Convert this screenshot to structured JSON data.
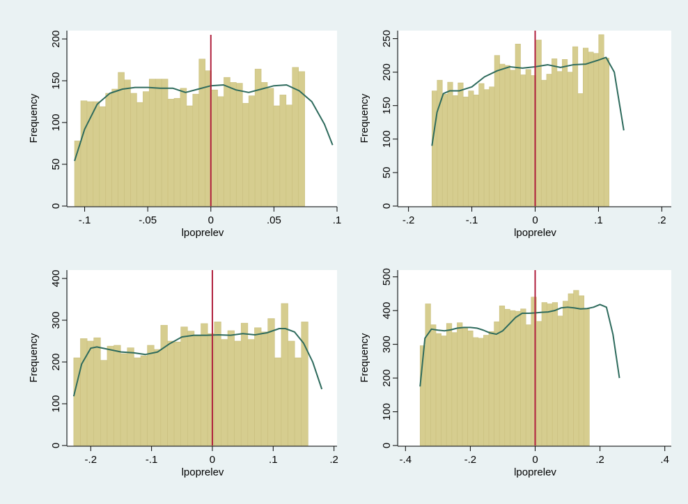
{
  "colors": {
    "background": "#eaf2f3",
    "plot_background": "#ffffff",
    "bar_fill": "#d6cd8f",
    "bar_edge": "#c9bf7e",
    "density_line": "#2d6a5c",
    "cutoff_line": "#b0203d"
  },
  "chart_data": [
    {
      "type": "bar",
      "panel": "top-left",
      "xlabel": "lpoprelev",
      "ylabel": "Frequency",
      "xlim": [
        -0.113,
        0.1
      ],
      "ylim": [
        0,
        210
      ],
      "xticks": [
        -0.1,
        -0.05,
        0,
        0.05,
        0.1
      ],
      "xtick_labels": [
        "-.1",
        "-.05",
        "0",
        ".05",
        ".1"
      ],
      "yticks": [
        0,
        50,
        100,
        150,
        200
      ],
      "ytick_labels": [
        "0",
        "50",
        "100",
        "150",
        "200"
      ],
      "bin_start": -0.108,
      "bin_width": 0.00493,
      "values": [
        78,
        126,
        125,
        125,
        119,
        135,
        140,
        160,
        151,
        135,
        124,
        137,
        152,
        152,
        152,
        128,
        129,
        141,
        120,
        134,
        176,
        162,
        139,
        131,
        154,
        148,
        147,
        123,
        132,
        164,
        148,
        141,
        120,
        133,
        121,
        166,
        161
      ],
      "density_x": [
        -0.108,
        -0.1,
        -0.09,
        -0.08,
        -0.07,
        -0.06,
        -0.05,
        -0.04,
        -0.03,
        -0.02,
        -0.01,
        0,
        0.01,
        0.02,
        0.03,
        0.04,
        0.05,
        0.06,
        0.07,
        0.08,
        0.09,
        0.0965
      ],
      "density_y": [
        54,
        92,
        122,
        135,
        140,
        142,
        142,
        141,
        141,
        136,
        140,
        144,
        145,
        139,
        136,
        140,
        144,
        145,
        138,
        125,
        98,
        73
      ],
      "cutoff_x": 0,
      "cutoff_top": 205
    },
    {
      "type": "bar",
      "panel": "top-right",
      "xlabel": "lpoprelev",
      "ylabel": "Frequency",
      "xlim": [
        -0.215,
        0.215
      ],
      "ylim": [
        0,
        262
      ],
      "xticks": [
        -0.2,
        -0.1,
        0,
        0.1,
        0.2
      ],
      "xtick_labels": [
        "-.2",
        "-.1",
        "0",
        ".1",
        ".2"
      ],
      "yticks": [
        0,
        50,
        100,
        150,
        200,
        250
      ],
      "ytick_labels": [
        "0",
        "50",
        "100",
        "150",
        "200",
        "250"
      ],
      "bin_start": -0.163,
      "bin_width": 0.00823,
      "values": [
        172,
        188,
        167,
        185,
        165,
        184,
        163,
        172,
        166,
        183,
        174,
        178,
        225,
        212,
        210,
        203,
        242,
        196,
        204,
        195,
        248,
        188,
        197,
        220,
        201,
        219,
        200,
        238,
        168,
        236,
        230,
        228,
        256,
        221
      ],
      "density_x": [
        -0.163,
        -0.155,
        -0.145,
        -0.135,
        -0.12,
        -0.1,
        -0.08,
        -0.06,
        -0.04,
        -0.02,
        0,
        0.02,
        0.04,
        0.06,
        0.08,
        0.1,
        0.112,
        0.125,
        0.14
      ],
      "density_y": [
        90,
        140,
        168,
        172,
        172,
        178,
        193,
        202,
        208,
        206,
        208,
        211,
        207,
        211,
        212,
        218,
        222,
        200,
        113
      ],
      "cutoff_x": 0,
      "cutoff_top": 262
    },
    {
      "type": "bar",
      "panel": "bottom-left",
      "xlabel": "lpoprelev",
      "ylabel": "Frequency",
      "xlim": [
        -0.237,
        0.205
      ],
      "ylim": [
        0,
        420
      ],
      "xticks": [
        -0.2,
        -0.1,
        0,
        0.1,
        0.2
      ],
      "xtick_labels": [
        "-.2",
        "-.1",
        "0",
        ".1",
        ".2"
      ],
      "yticks": [
        0,
        100,
        200,
        300,
        400
      ],
      "ytick_labels": [
        "0",
        "100",
        "200",
        "300",
        "400"
      ],
      "bin_start": -0.228,
      "bin_width": 0.01101,
      "values": [
        210,
        256,
        250,
        258,
        204,
        238,
        240,
        220,
        234,
        210,
        215,
        240,
        230,
        288,
        250,
        248,
        284,
        274,
        262,
        292,
        268,
        296,
        254,
        275,
        250,
        293,
        254,
        282,
        272,
        304,
        210,
        340,
        250,
        210,
        296
      ],
      "density_x": [
        -0.228,
        -0.215,
        -0.2,
        -0.19,
        -0.17,
        -0.15,
        -0.13,
        -0.11,
        -0.09,
        -0.07,
        -0.05,
        -0.03,
        -0.01,
        0.01,
        0.03,
        0.05,
        0.07,
        0.09,
        0.11,
        0.12,
        0.135,
        0.15,
        0.165,
        0.18
      ],
      "density_y": [
        118,
        195,
        233,
        236,
        230,
        224,
        222,
        218,
        224,
        244,
        260,
        264,
        264,
        265,
        264,
        268,
        265,
        270,
        280,
        280,
        272,
        245,
        200,
        135
      ],
      "cutoff_x": 0,
      "cutoff_top": 420
    },
    {
      "type": "bar",
      "panel": "bottom-right",
      "xlabel": "lpoprelev",
      "ylabel": "Frequency",
      "xlim": [
        -0.42,
        0.42
      ],
      "ylim": [
        0,
        520
      ],
      "xticks": [
        -0.4,
        -0.2,
        0,
        0.2,
        0.4
      ],
      "xtick_labels": [
        "-.4",
        "-.2",
        "0",
        ".2",
        ".4"
      ],
      "yticks": [
        0,
        100,
        200,
        300,
        400,
        500
      ],
      "ytick_labels": [
        "0",
        "100",
        "200",
        "300",
        "400",
        "500"
      ],
      "bin_start": -0.355,
      "bin_width": 0.01632,
      "values": [
        296,
        420,
        358,
        332,
        325,
        362,
        335,
        364,
        348,
        340,
        320,
        318,
        327,
        338,
        367,
        414,
        404,
        400,
        398,
        405,
        358,
        440,
        368,
        424,
        420,
        424,
        384,
        428,
        450,
        460,
        444,
        405
      ],
      "density_x": [
        -0.355,
        -0.34,
        -0.32,
        -0.3,
        -0.28,
        -0.26,
        -0.24,
        -0.22,
        -0.2,
        -0.18,
        -0.16,
        -0.14,
        -0.12,
        -0.1,
        -0.08,
        -0.06,
        -0.04,
        -0.02,
        0,
        0.02,
        0.04,
        0.06,
        0.08,
        0.1,
        0.12,
        0.14,
        0.16,
        0.18,
        0.2,
        0.22,
        0.24,
        0.26
      ],
      "density_y": [
        175,
        318,
        345,
        342,
        340,
        343,
        348,
        350,
        350,
        348,
        342,
        334,
        330,
        340,
        360,
        380,
        392,
        392,
        393,
        395,
        396,
        400,
        408,
        410,
        408,
        405,
        406,
        410,
        418,
        410,
        330,
        200
      ],
      "cutoff_x": 0,
      "cutoff_top": 520
    }
  ]
}
